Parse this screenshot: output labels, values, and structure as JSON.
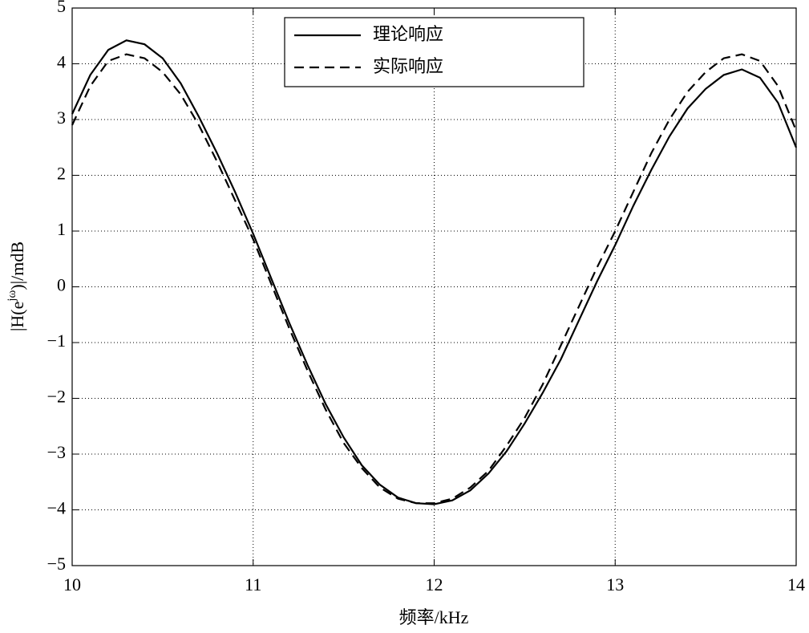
{
  "chart_data": {
    "type": "line",
    "xlabel": "频率/kHz",
    "ylabel": [
      "|H(e",
      "jω",
      ")|/mdB"
    ],
    "x": [
      10.0,
      10.1,
      10.2,
      10.3,
      10.4,
      10.5,
      10.6,
      10.7,
      10.8,
      10.9,
      11.0,
      11.1,
      11.2,
      11.3,
      11.4,
      11.5,
      11.6,
      11.7,
      11.8,
      11.9,
      12.0,
      12.1,
      12.2,
      12.3,
      12.4,
      12.5,
      12.6,
      12.7,
      12.8,
      12.9,
      13.0,
      13.1,
      13.2,
      13.3,
      13.4,
      13.5,
      13.6,
      13.7,
      13.8,
      13.9,
      14.0
    ],
    "series": [
      {
        "name": "理论响应",
        "color": "#000000",
        "dash": "solid",
        "values": [
          3.1,
          3.8,
          4.25,
          4.42,
          4.35,
          4.1,
          3.65,
          3.05,
          2.4,
          1.7,
          0.95,
          0.15,
          -0.65,
          -1.4,
          -2.1,
          -2.7,
          -3.2,
          -3.55,
          -3.78,
          -3.88,
          -3.9,
          -3.83,
          -3.65,
          -3.35,
          -2.95,
          -2.45,
          -1.9,
          -1.3,
          -0.6,
          0.1,
          0.75,
          1.45,
          2.1,
          2.7,
          3.2,
          3.55,
          3.8,
          3.9,
          3.75,
          3.3,
          2.5
        ]
      },
      {
        "name": "实际响应",
        "color": "#000000",
        "dash": "dashed",
        "values": [
          2.9,
          3.6,
          4.05,
          4.17,
          4.1,
          3.85,
          3.45,
          2.9,
          2.25,
          1.55,
          0.85,
          0.05,
          -0.75,
          -1.5,
          -2.2,
          -2.8,
          -3.25,
          -3.6,
          -3.8,
          -3.88,
          -3.88,
          -3.8,
          -3.6,
          -3.3,
          -2.85,
          -2.35,
          -1.75,
          -1.05,
          -0.35,
          0.35,
          1.0,
          1.7,
          2.4,
          3.0,
          3.5,
          3.85,
          4.1,
          4.17,
          4.05,
          3.6,
          2.8
        ]
      }
    ],
    "xlim": [
      10,
      14
    ],
    "xticks": [
      10,
      11,
      12,
      13,
      14
    ],
    "ylim": [
      -5,
      5
    ],
    "yticks": [
      {
        "value": -5,
        "label": "−5"
      },
      {
        "value": -4,
        "label": "−4"
      },
      {
        "value": -3,
        "label": "−3"
      },
      {
        "value": -2,
        "label": "−2"
      },
      {
        "value": -1,
        "label": "−1"
      },
      0,
      1,
      2,
      3,
      4,
      5
    ],
    "grid": true,
    "legend": "top-center"
  }
}
